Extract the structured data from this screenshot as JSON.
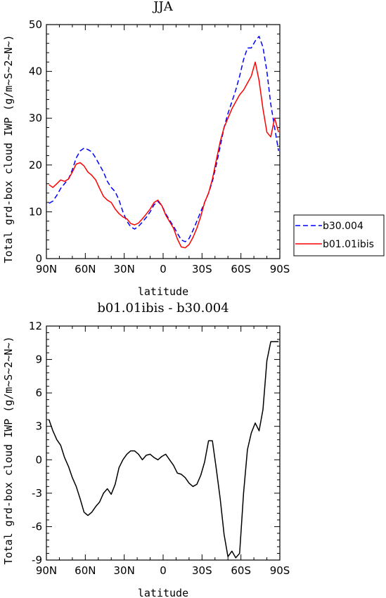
{
  "chart_data": [
    {
      "type": "line",
      "title": "JJA",
      "xlabel": "latitude",
      "ylabel": "Total grd-box cloud IWP (g/m~S~2~N~)",
      "x_ticks": [
        "90N",
        "60N",
        "30N",
        "0",
        "30S",
        "60S",
        "90S"
      ],
      "y_ticks": [
        "0",
        "10",
        "20",
        "30",
        "40",
        "50"
      ],
      "xlim": [
        90,
        -90
      ],
      "ylim": [
        0,
        50
      ],
      "legend_position": "right",
      "series": [
        {
          "name": "b30.004",
          "color": "#0000ff",
          "dash": "dashed",
          "x": [
            88,
            85,
            82,
            79,
            76,
            73,
            70,
            67,
            64,
            61,
            58,
            55,
            52,
            49,
            46,
            43,
            40,
            37,
            34,
            31,
            28,
            25,
            22,
            19,
            16,
            13,
            10,
            7,
            4,
            1,
            -2,
            -5,
            -8,
            -11,
            -14,
            -17,
            -20,
            -23,
            -26,
            -29,
            -32,
            -35,
            -38,
            -41,
            -44,
            -47,
            -50,
            -53,
            -56,
            -59,
            -62,
            -65,
            -68,
            -71,
            -74,
            -77,
            -80,
            -83,
            -86,
            -89
          ],
          "y": [
            11.8,
            12.3,
            13.5,
            15.0,
            16.0,
            17.0,
            19.0,
            21.5,
            23.0,
            23.6,
            23.3,
            22.8,
            21.5,
            20.0,
            18.5,
            16.5,
            15.2,
            14.3,
            12.5,
            10.0,
            8.0,
            6.8,
            6.3,
            6.9,
            7.8,
            8.8,
            10.0,
            11.5,
            12.2,
            11.3,
            9.6,
            8.2,
            6.9,
            5.4,
            4.0,
            3.6,
            4.3,
            6.0,
            8.0,
            10.0,
            12.0,
            14.0,
            16.5,
            20.0,
            24.0,
            28.0,
            31.0,
            33.5,
            36.0,
            39.0,
            42.5,
            45.0,
            45.0,
            46.5,
            47.5,
            45.2,
            40.0,
            33.0,
            28.0,
            23.0
          ]
        },
        {
          "name": "b01.01ibis",
          "color": "#ff0000",
          "dash": "solid",
          "x": [
            88,
            85,
            82,
            79,
            76,
            73,
            70,
            67,
            64,
            61,
            58,
            55,
            52,
            49,
            46,
            43,
            40,
            37,
            34,
            31,
            28,
            25,
            22,
            19,
            16,
            13,
            10,
            7,
            4,
            1,
            -2,
            -5,
            -8,
            -11,
            -14,
            -17,
            -20,
            -23,
            -26,
            -29,
            -32,
            -35,
            -38,
            -41,
            -44,
            -47,
            -50,
            -53,
            -56,
            -59,
            -62,
            -65,
            -68,
            -71,
            -74,
            -77,
            -80,
            -83,
            -86,
            -89
          ],
          "y": [
            15.8,
            15.2,
            16.0,
            16.8,
            16.5,
            17.0,
            18.5,
            20.2,
            20.5,
            19.8,
            18.5,
            17.8,
            16.8,
            15.0,
            13.3,
            12.5,
            12.0,
            10.6,
            9.6,
            8.9,
            8.5,
            7.5,
            7.2,
            7.6,
            8.5,
            9.5,
            10.6,
            12.0,
            12.5,
            11.3,
            9.3,
            7.9,
            6.5,
            4.2,
            2.5,
            2.3,
            3.0,
            4.5,
            6.5,
            9.0,
            12.0,
            14.0,
            17.0,
            21.0,
            25.0,
            28.0,
            30.0,
            32.0,
            33.5,
            35.0,
            36.0,
            37.5,
            39.0,
            42.0,
            38.0,
            32.0,
            27.0,
            26.0,
            30.0,
            27.0
          ]
        }
      ]
    },
    {
      "type": "line",
      "title": "b01.01ibis - b30.004",
      "xlabel": "latitude",
      "ylabel": "Total grd-box cloud IWP (g/m~S~2~N~)",
      "x_ticks": [
        "90N",
        "60N",
        "30N",
        "0",
        "30S",
        "60S",
        "90S"
      ],
      "y_ticks": [
        "-9",
        "-6",
        "-3",
        "0",
        "3",
        "6",
        "9",
        "12"
      ],
      "xlim": [
        90,
        -90
      ],
      "ylim": [
        -9,
        12
      ],
      "series": [
        {
          "color": "#000000",
          "dash": "solid",
          "x": [
            88,
            85,
            82,
            79,
            76,
            73,
            70,
            67,
            64,
            61,
            58,
            55,
            52,
            49,
            46,
            43,
            40,
            37,
            34,
            31,
            28,
            25,
            22,
            19,
            16,
            13,
            10,
            7,
            4,
            1,
            -2,
            -5,
            -8,
            -11,
            -14,
            -17,
            -20,
            -23,
            -26,
            -29,
            -32,
            -35,
            -38,
            -41,
            -44,
            -47,
            -50,
            -53,
            -56,
            -59,
            -62,
            -65,
            -68,
            -71,
            -74,
            -77,
            -80,
            -83,
            -86,
            -89
          ],
          "y": [
            3.6,
            2.6,
            1.8,
            1.3,
            0.2,
            -0.6,
            -1.6,
            -2.4,
            -3.5,
            -4.7,
            -5.0,
            -4.7,
            -4.2,
            -3.8,
            -3.0,
            -2.6,
            -3.1,
            -2.2,
            -0.7,
            0.0,
            0.5,
            0.8,
            0.8,
            0.5,
            0.0,
            0.4,
            0.5,
            0.2,
            0.0,
            0.3,
            0.5,
            0.0,
            -0.5,
            -1.2,
            -1.3,
            -1.6,
            -2.1,
            -2.4,
            -2.2,
            -1.4,
            -0.2,
            1.7,
            1.7,
            -0.8,
            -3.5,
            -6.7,
            -8.7,
            -8.2,
            -8.8,
            -8.4,
            -3.0,
            0.9,
            2.4,
            3.3,
            2.6,
            4.5,
            8.9,
            10.6,
            10.6,
            10.6
          ]
        }
      ]
    }
  ]
}
